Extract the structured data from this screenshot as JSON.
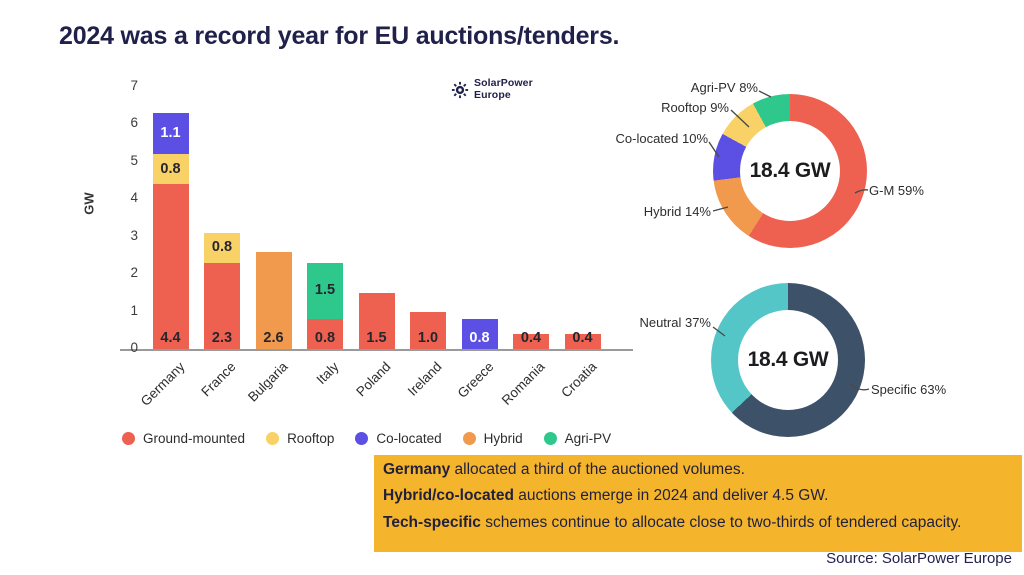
{
  "slide": {
    "title": "2024 was a record year for EU auctions/tenders.",
    "source": "Source: SolarPower Europe",
    "logo": {
      "line1": "SolarPower",
      "line2": "Europe"
    },
    "colors": {
      "title_navy": "#20214B",
      "callout_bg": "#F4B52C",
      "axis_gray": "#9a9a9a"
    }
  },
  "callout": {
    "lines": [
      {
        "lead": "Germany",
        "rest": " allocated a third of the auctioned volumes."
      },
      {
        "lead": "Hybrid/co-located",
        "rest": " auctions emerge in 2024 and deliver 4.5 GW."
      },
      {
        "lead": "Tech-specific",
        "rest": " schemes continue to allocate close to two-thirds of tendered capacity."
      }
    ]
  },
  "chart_data": [
    {
      "type": "bar",
      "stacked": true,
      "ylabel": "GW",
      "ylim": [
        0,
        7
      ],
      "yticks": [
        0,
        1,
        2,
        3,
        4,
        5,
        6,
        7
      ],
      "grid": false,
      "categories": [
        "Germany",
        "France",
        "Bulgaria",
        "Italy",
        "Poland",
        "Ireland",
        "Greece",
        "Romania",
        "Croatia"
      ],
      "palette": {
        "ground-mounted": "#EE6150",
        "rooftop": "#F8D266",
        "co-located": "#5B50E3",
        "hybrid": "#F19A4D",
        "agri-pv": "#2EC78C"
      },
      "legend": [
        {
          "label": "Ground-mounted",
          "type": "ground-mounted"
        },
        {
          "label": "Rooftop",
          "type": "rooftop"
        },
        {
          "label": "Co-located",
          "type": "co-located"
        },
        {
          "label": "Hybrid",
          "type": "hybrid"
        },
        {
          "label": "Agri-PV",
          "type": "agri-pv"
        }
      ],
      "bars": [
        {
          "country": "Germany",
          "segments": [
            {
              "type": "ground-mounted",
              "value": 4.4,
              "display": "4.4"
            },
            {
              "type": "rooftop",
              "value": 0.8,
              "display": "0.8"
            },
            {
              "type": "co-located",
              "value": 1.1,
              "display": "1.1"
            }
          ]
        },
        {
          "country": "France",
          "segments": [
            {
              "type": "ground-mounted",
              "value": 2.3,
              "display": "2.3"
            },
            {
              "type": "rooftop",
              "value": 0.8,
              "display": "0.8"
            }
          ]
        },
        {
          "country": "Bulgaria",
          "segments": [
            {
              "type": "hybrid",
              "value": 2.6,
              "display": "2.6"
            }
          ]
        },
        {
          "country": "Italy",
          "segments": [
            {
              "type": "ground-mounted",
              "value": 0.8,
              "display": "0.8"
            },
            {
              "type": "agri-pv",
              "value": 1.5,
              "display": "1.5"
            }
          ]
        },
        {
          "country": "Poland",
          "segments": [
            {
              "type": "ground-mounted",
              "value": 1.5,
              "display": "1.5"
            }
          ]
        },
        {
          "country": "Ireland",
          "segments": [
            {
              "type": "ground-mounted",
              "value": 1.0,
              "display": "1.0"
            }
          ]
        },
        {
          "country": "Greece",
          "segments": [
            {
              "type": "co-located",
              "value": 0.8,
              "display": "0.8"
            }
          ]
        },
        {
          "country": "Romania",
          "segments": [
            {
              "type": "ground-mounted",
              "value": 0.4,
              "display": "0.4"
            }
          ]
        },
        {
          "country": "Croatia",
          "segments": [
            {
              "type": "ground-mounted",
              "value": 0.4,
              "display": "0.4"
            }
          ]
        }
      ]
    },
    {
      "type": "pie",
      "subtype": "donut",
      "center_label": "18.4 GW",
      "legend_position": "callout-labels",
      "segments": [
        {
          "label": "G-M 59%",
          "pct": 59,
          "color": "#EE6150"
        },
        {
          "label": "Hybrid 14%",
          "pct": 14,
          "color": "#F19A4D"
        },
        {
          "label": "Co-located 10%",
          "pct": 10,
          "color": "#5B50E3"
        },
        {
          "label": "Rooftop 9%",
          "pct": 9,
          "color": "#F8D266"
        },
        {
          "label": "Agri-PV 8%",
          "pct": 8,
          "color": "#2EC78C"
        }
      ]
    },
    {
      "type": "pie",
      "subtype": "donut",
      "center_label": "18.4 GW",
      "legend_position": "callout-labels",
      "segments": [
        {
          "label": "Specific 63%",
          "pct": 63,
          "color": "#3D5169"
        },
        {
          "label": "Neutral 37%",
          "pct": 37,
          "color": "#55C6C8"
        }
      ]
    }
  ]
}
